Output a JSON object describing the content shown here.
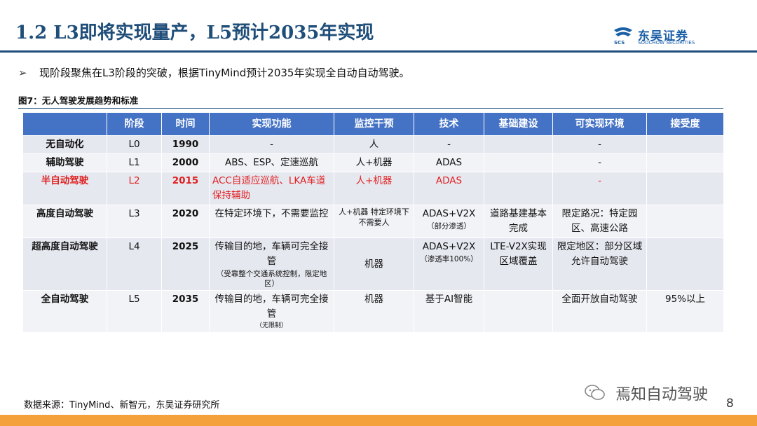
{
  "header": {
    "title": "1.2 L3即将实现量产，L5预计2035年实现",
    "logo_name": "东吴证券",
    "logo_abbr": "SCS",
    "logo_english": "SOOCHOW SECURITIES"
  },
  "bullet": {
    "marker": "➢",
    "text": "现阶段聚焦在L3阶段的突破，根据TinyMind预计2035年实现全自动自动驾驶。"
  },
  "figure": {
    "caption": "图7：无人驾驶发展趋势和标准"
  },
  "table": {
    "headers": [
      "",
      "阶段",
      "时间",
      "实现功能",
      "监控干预",
      "技术",
      "基础建设",
      "可实现环境",
      "接受度"
    ],
    "rows": [
      {
        "name": "无自动化",
        "stage": "L0",
        "year": "1990",
        "func": "-",
        "func_note": "",
        "monitor": "人",
        "tech": "-",
        "tech_note": "",
        "infra": "",
        "env": "-",
        "accept": ""
      },
      {
        "name": "辅助驾驶",
        "stage": "L1",
        "year": "2000",
        "func": "ABS、ESP、定速巡航",
        "func_note": "",
        "monitor": "人+机器",
        "tech": "ADAS",
        "tech_note": "",
        "infra": "",
        "env": "-",
        "accept": ""
      },
      {
        "name": "半自动驾驶",
        "stage": "L2",
        "year": "2015",
        "func": "ACC自适应巡航、LKA车道保持辅助",
        "func_note": "",
        "monitor": "人+机器",
        "tech": "ADAS",
        "tech_note": "",
        "infra": "",
        "env": "-",
        "accept": ""
      },
      {
        "name": "高度自动驾驶",
        "stage": "L3",
        "year": "2020",
        "func": "在特定环境下，不需要监控",
        "func_note": "",
        "monitor": "人+机器 特定环境下 不需要人",
        "tech": "ADAS+V2X",
        "tech_note": "（部分渗透）",
        "infra": "道路基建基本完成",
        "env": "限定路况：特定园区、高速公路",
        "accept": ""
      },
      {
        "name": "超高度自动驾驶",
        "stage": "L4",
        "year": "2025",
        "func": "传输目的地，车辆可完全接管",
        "func_note": "（受靠整个交通系统控制，限定地区）",
        "monitor": "机器",
        "tech": "ADAS+V2X",
        "tech_note": "（渗透率100%）",
        "infra": "LTE-V2X实现区域覆盖",
        "env": "限定地区：部分区域允许自动驾驶",
        "accept": ""
      },
      {
        "name": "全自动驾驶",
        "stage": "L5",
        "year": "2035",
        "func": "传输目的地，车辆可完全接管",
        "func_note": "（无限制）",
        "monitor": "机器",
        "tech": "基于AI智能",
        "tech_note": "",
        "infra": "",
        "env": "全面开放自动驾驶",
        "accept": "95%以上"
      }
    ]
  },
  "footer": {
    "source": "数据来源：TinyMind、新智元，东吴证券研究所",
    "watermark": "焉知自动驾驶",
    "page_number": "8"
  },
  "colors": {
    "title": "#1f4e79",
    "header_fill": "#4472c4",
    "cell_fill": "#e6e8f0",
    "highlight_row": "#e02020",
    "bottom_bar": "#f5a13b"
  }
}
